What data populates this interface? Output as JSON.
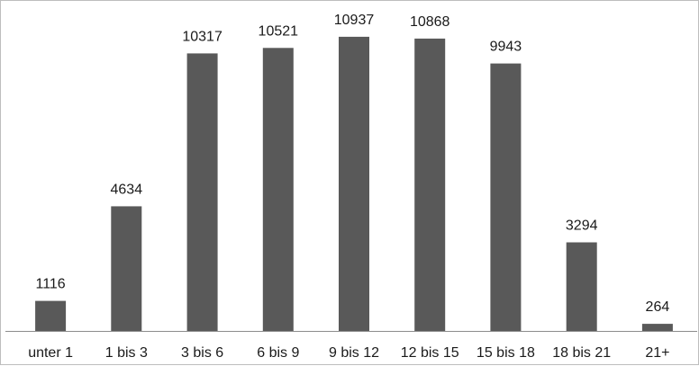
{
  "chart_data": {
    "type": "bar",
    "categories": [
      "unter 1",
      "1 bis 3",
      "3 bis 6",
      "6 bis 9",
      "9 bis 12",
      "12 bis 15",
      "15 bis 18",
      "18 bis 21",
      "21+"
    ],
    "values": [
      1116,
      4634,
      10317,
      10521,
      10937,
      10868,
      9943,
      3294,
      264
    ],
    "data_labels": [
      "1116",
      "4634",
      "10317",
      "10521",
      "10937",
      "10868",
      "9943",
      "3294",
      "264"
    ],
    "title": "",
    "xlabel": "",
    "ylabel": "",
    "ylim": [
      0,
      11000
    ],
    "grid": false,
    "legend": "none",
    "bar_color": "#595959"
  }
}
